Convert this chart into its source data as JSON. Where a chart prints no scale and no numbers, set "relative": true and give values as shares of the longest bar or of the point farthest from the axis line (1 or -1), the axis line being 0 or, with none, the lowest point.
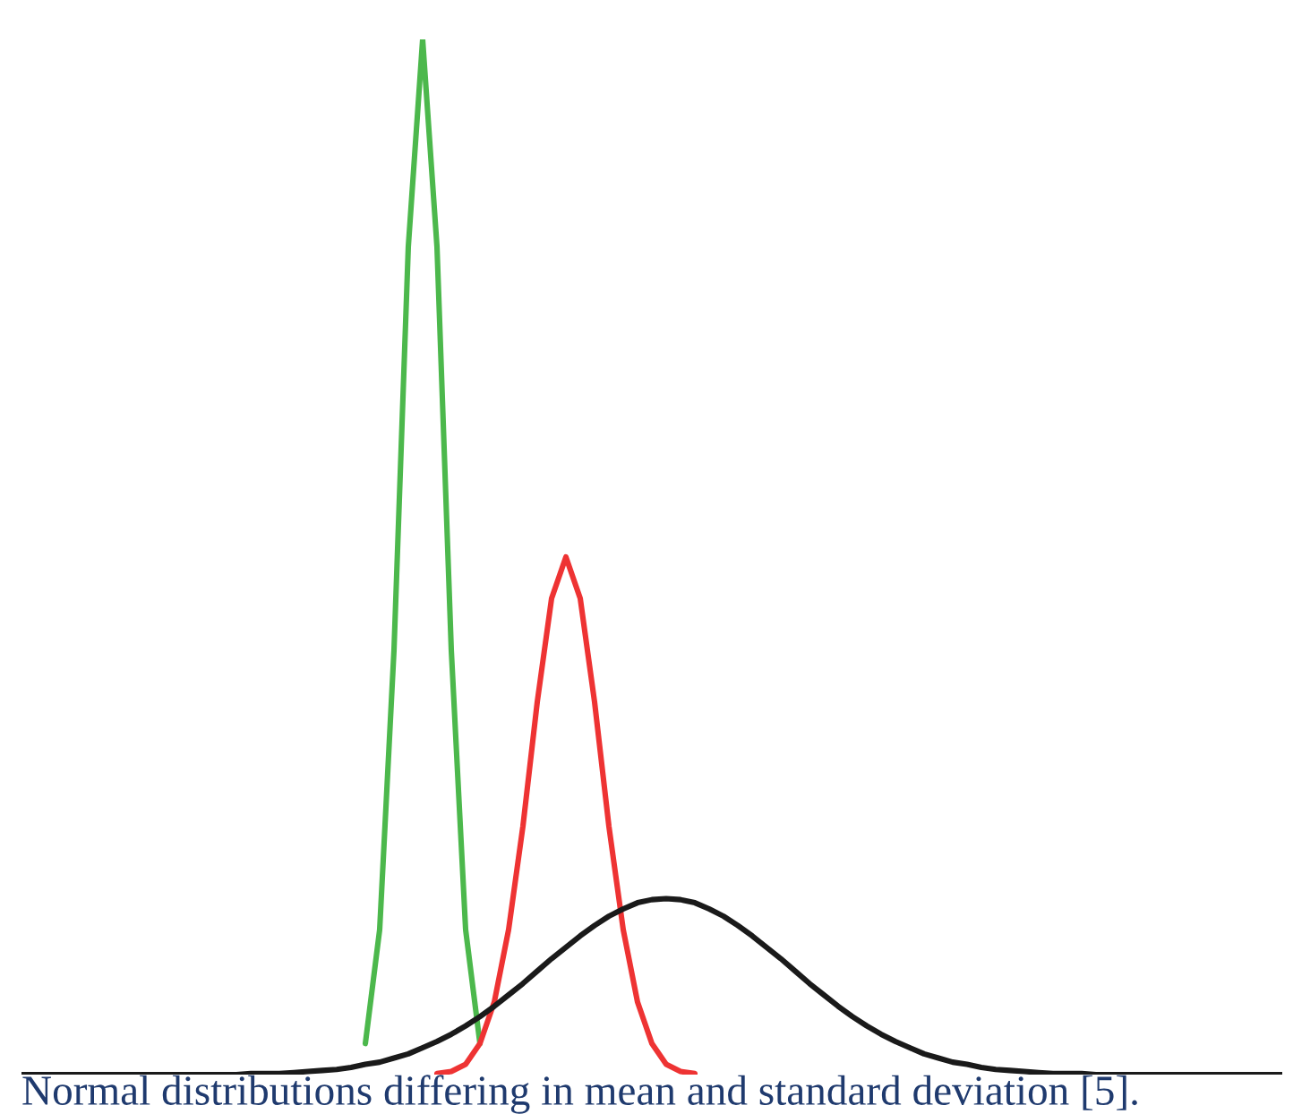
{
  "chart_data": {
    "type": "line",
    "relative": true,
    "categories": [
      null,
      null,
      null,
      null,
      null,
      null,
      null,
      null,
      null,
      null,
      null,
      null,
      null,
      null,
      null,
      null,
      null,
      null,
      null,
      null,
      null,
      null,
      null,
      null,
      null,
      null,
      null,
      null,
      null,
      null,
      null,
      null,
      null,
      null,
      null,
      null,
      null,
      null,
      null,
      null,
      null,
      null,
      null,
      null,
      null,
      null,
      null,
      null,
      null,
      null,
      null,
      null,
      null,
      null,
      null,
      null,
      null,
      null,
      null,
      null,
      null,
      null,
      null,
      null,
      null,
      null,
      null,
      null,
      null,
      null,
      null,
      null,
      null,
      null,
      null,
      null,
      null,
      null,
      null,
      null,
      null,
      null,
      null,
      null,
      null,
      null,
      null,
      null,
      null
    ],
    "series": [
      {
        "color": "#4cb84c",
        "values": [
          null,
          null,
          null,
          null,
          null,
          null,
          null,
          null,
          null,
          null,
          null,
          null,
          null,
          null,
          null,
          null,
          null,
          null,
          null,
          null,
          null,
          null,
          null,
          null,
          0.03,
          0.14,
          0.41,
          0.8,
          1,
          0.8,
          0.41,
          0.14,
          0.03,
          null,
          null,
          null,
          null,
          null,
          null,
          null,
          null,
          null,
          null,
          null,
          null,
          null,
          null,
          null,
          null,
          null,
          null,
          null,
          null,
          null,
          null,
          null,
          null,
          null,
          null,
          null,
          null,
          null,
          null,
          null,
          null,
          null,
          null,
          null,
          null,
          null,
          null,
          null,
          null,
          null,
          null,
          null,
          null,
          null,
          null,
          null,
          null,
          null,
          null,
          null,
          null,
          null,
          null,
          null,
          null
        ]
      },
      {
        "color": "#ee3333",
        "values": [
          null,
          null,
          null,
          null,
          null,
          null,
          null,
          null,
          null,
          null,
          null,
          null,
          null,
          null,
          null,
          null,
          null,
          null,
          null,
          null,
          null,
          null,
          null,
          null,
          null,
          null,
          null,
          null,
          null,
          0.001,
          0.003,
          0.01,
          0.03,
          0.07,
          0.14,
          0.24,
          0.36,
          0.46,
          0.5,
          0.46,
          0.36,
          0.24,
          0.14,
          0.07,
          0.03,
          0.01,
          0.003,
          0.001,
          null,
          null,
          null,
          null,
          null,
          null,
          null,
          null,
          null,
          null,
          null,
          null,
          null,
          null,
          null,
          null,
          null,
          null,
          null,
          null,
          null,
          null,
          null,
          null,
          null,
          null,
          null,
          null,
          null,
          null,
          null,
          null,
          null,
          null,
          null,
          null,
          null,
          null,
          null,
          null,
          null
        ]
      },
      {
        "color": "#1a1a1a",
        "values": [
          0,
          0,
          0,
          0,
          0,
          0,
          0,
          0,
          0,
          0,
          0,
          0,
          0,
          0,
          0,
          0,
          0.001,
          0.001,
          0.001,
          0.002,
          0.003,
          0.004,
          0.005,
          0.007,
          0.01,
          0.012,
          0.016,
          0.02,
          0.026,
          0.032,
          0.039,
          0.047,
          0.056,
          0.066,
          0.077,
          0.088,
          0.1,
          0.112,
          0.123,
          0.134,
          0.144,
          0.153,
          0.16,
          0.166,
          0.169,
          0.17,
          0.169,
          0.166,
          0.16,
          0.153,
          0.144,
          0.134,
          0.123,
          0.112,
          0.1,
          0.088,
          0.077,
          0.066,
          0.056,
          0.047,
          0.039,
          0.032,
          0.026,
          0.02,
          0.016,
          0.012,
          0.01,
          0.007,
          0.005,
          0.004,
          0.003,
          0.002,
          0.001,
          0.001,
          0.001,
          0,
          0,
          0,
          0,
          0,
          0,
          0,
          0,
          0,
          0,
          0,
          0,
          0,
          0
        ]
      }
    ],
    "annotations": [
      "Normal distributions differing in mean and standard deviation [5]."
    ]
  }
}
